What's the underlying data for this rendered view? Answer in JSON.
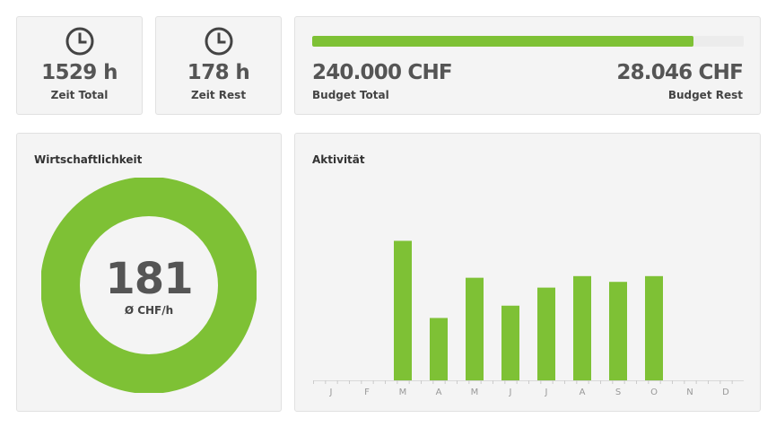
{
  "stats": {
    "time_total": {
      "value": "1529 h",
      "label": "Zeit Total",
      "icon": "clock-icon"
    },
    "time_rest": {
      "value": "178 h",
      "label": "Zeit Rest",
      "icon": "clock-icon"
    }
  },
  "budget": {
    "total_value": "240.000 CHF",
    "total_label": "Budget Total",
    "rest_value": "28.046 CHF",
    "rest_label": "Budget Rest",
    "used_fraction": 0.883
  },
  "economy": {
    "title": "Wirtschaftlichkeit",
    "value": "181",
    "unit": "Ø CHF/h"
  },
  "activity": {
    "title": "Aktivität"
  },
  "colors": {
    "accent": "#7ec135",
    "track": "#ececec",
    "card_bg": "#f4f4f4",
    "text_dark": "#555555"
  },
  "chart_data": {
    "type": "bar",
    "categories": [
      "J",
      "F",
      "M",
      "A",
      "M",
      "J",
      "J",
      "A",
      "S",
      "O",
      "N",
      "D"
    ],
    "values": [
      0,
      0,
      170,
      76,
      125,
      91,
      113,
      127,
      120,
      127,
      0,
      0
    ],
    "ylim": [
      0,
      235
    ],
    "grid": false,
    "legend": "none"
  }
}
